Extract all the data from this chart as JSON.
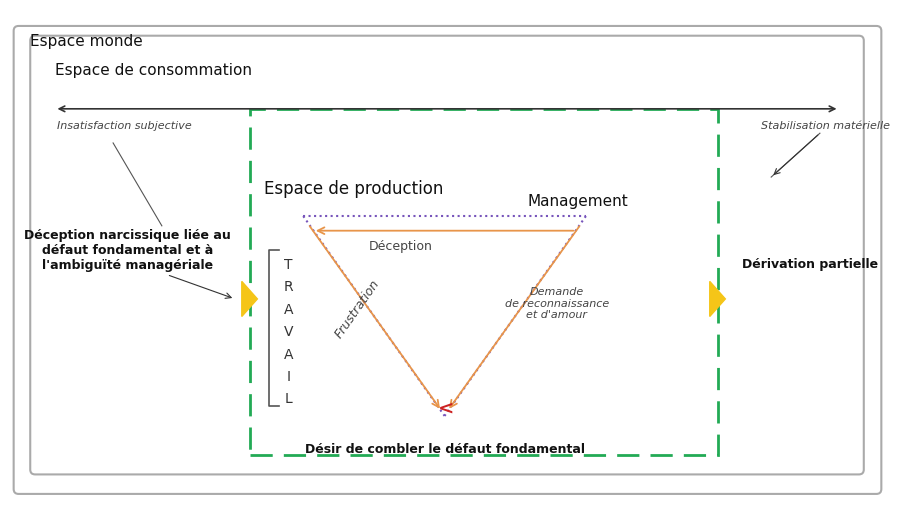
{
  "title": "Espace monde",
  "outer_box_color": "#aaaaaa",
  "inner_box_color": "#aaaaaa",
  "green_box_color": "#00aa44",
  "purple_dotted_color": "#6633cc",
  "orange_arrow_color": "#cc7722",
  "background": "#ffffff",
  "labels": {
    "espace_monde": "Espace monde",
    "espace_consommation": "Espace de consommation",
    "insatisfaction": "Insatisfaction subjective",
    "stabilisation": "Stabilisation matérielle",
    "espace_production": "Espace de production",
    "management": "Management",
    "deception": "Déception",
    "frustration": "Frustration",
    "demande": "Demande\nde reconnaissance\net d'amour",
    "desir": "Désir de combler le défaut fondamental",
    "travail": "T\nR\nA\nV\nA\nI\nL",
    "deception_narc": "Déception narcissique liée au\ndéfaut fondamental et à\nl'ambiguïté managériale",
    "derivation": "Dérivation partielle"
  },
  "colors": {
    "arrow_black": "#333333",
    "orange": "#E8954A",
    "purple": "#7755BB",
    "green_dashed": "#22AA55",
    "yellow_arrow": "#F5C518",
    "red_omega": "#CC2222",
    "text_dark": "#111111"
  }
}
